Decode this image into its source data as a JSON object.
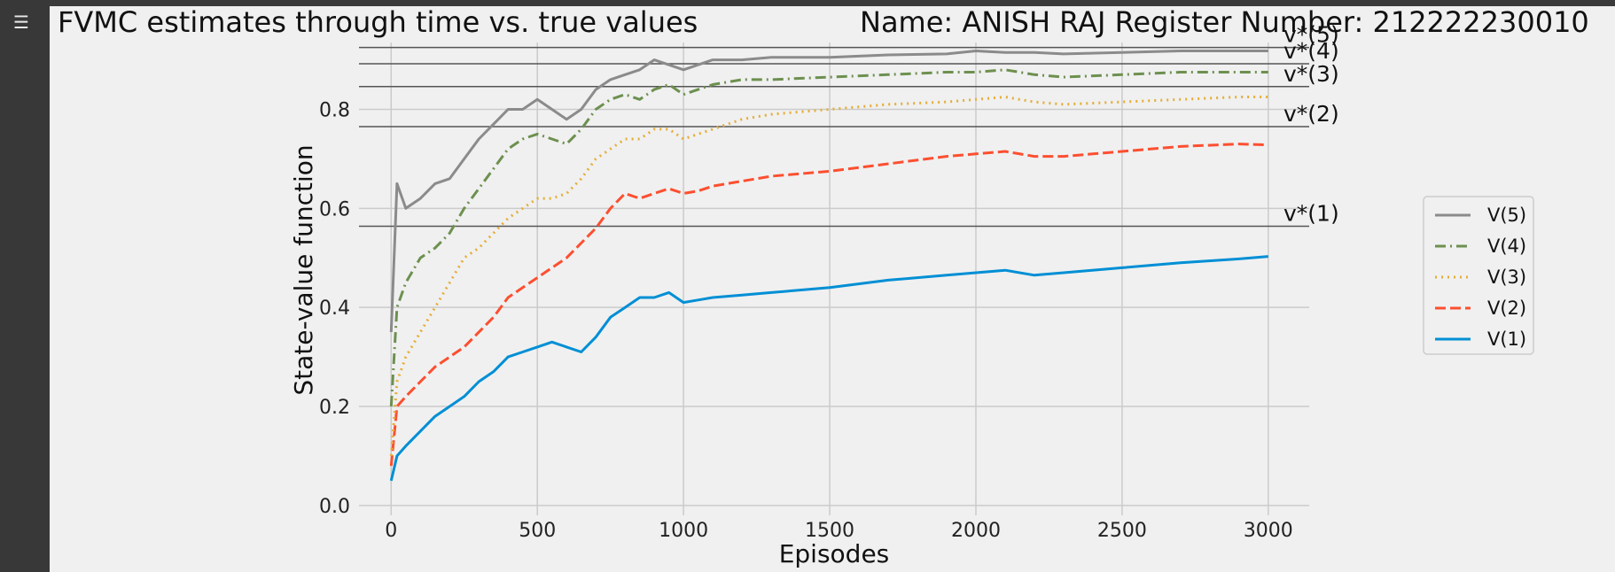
{
  "sidebar": {
    "icon": "output-toggle-icon"
  },
  "header": {
    "title": "FVMC estimates through time vs. true values",
    "student": "Name:  ANISH RAJ  Register Number: 212222230010"
  },
  "chart_data": {
    "type": "line",
    "title": "FVMC estimates through time vs. true values",
    "xlabel": "Episodes",
    "ylabel": "State-value function",
    "xlim": [
      -110,
      3140
    ],
    "ylim": [
      -0.02,
      0.935
    ],
    "xticks": [
      0,
      500,
      1000,
      1500,
      2000,
      2500,
      3000
    ],
    "yticks": [
      0.0,
      0.2,
      0.4,
      0.6,
      0.8
    ],
    "grid": true,
    "legend_position": "right",
    "reference_lines": [
      {
        "label": "v*(5)",
        "value": 0.925
      },
      {
        "label": "v*(4)",
        "value": 0.892
      },
      {
        "label": "v*(3)",
        "value": 0.846
      },
      {
        "label": "v*(2)",
        "value": 0.765
      },
      {
        "label": "v*(1)",
        "value": 0.564
      }
    ],
    "series": [
      {
        "name": "V(5)",
        "color": "#8b8b8b",
        "dash": "solid",
        "x": [
          0,
          20,
          50,
          100,
          150,
          200,
          250,
          300,
          350,
          400,
          450,
          500,
          550,
          600,
          650,
          700,
          750,
          800,
          850,
          900,
          950,
          1000,
          1050,
          1100,
          1200,
          1300,
          1500,
          1700,
          1900,
          2000,
          2100,
          2200,
          2300,
          2500,
          2700,
          2900,
          3000
        ],
        "y": [
          0.35,
          0.65,
          0.6,
          0.62,
          0.65,
          0.66,
          0.7,
          0.74,
          0.77,
          0.8,
          0.8,
          0.82,
          0.8,
          0.78,
          0.8,
          0.84,
          0.86,
          0.87,
          0.88,
          0.9,
          0.89,
          0.88,
          0.89,
          0.9,
          0.9,
          0.905,
          0.905,
          0.91,
          0.912,
          0.918,
          0.915,
          0.915,
          0.912,
          0.915,
          0.918,
          0.918,
          0.918
        ]
      },
      {
        "name": "V(4)",
        "color": "#6d904f",
        "dash": "dashdot",
        "x": [
          0,
          20,
          50,
          100,
          150,
          200,
          250,
          300,
          350,
          400,
          450,
          500,
          550,
          600,
          650,
          700,
          750,
          800,
          850,
          900,
          950,
          1000,
          1050,
          1100,
          1200,
          1300,
          1500,
          1700,
          1900,
          2000,
          2100,
          2200,
          2300,
          2500,
          2700,
          2900,
          3000
        ],
        "y": [
          0.2,
          0.4,
          0.45,
          0.5,
          0.52,
          0.55,
          0.6,
          0.64,
          0.68,
          0.72,
          0.74,
          0.75,
          0.74,
          0.73,
          0.76,
          0.8,
          0.82,
          0.83,
          0.82,
          0.84,
          0.85,
          0.83,
          0.84,
          0.85,
          0.86,
          0.86,
          0.865,
          0.87,
          0.875,
          0.875,
          0.88,
          0.87,
          0.865,
          0.87,
          0.875,
          0.875,
          0.875
        ]
      },
      {
        "name": "V(3)",
        "color": "#e5ae38",
        "dash": "dotted",
        "x": [
          0,
          20,
          50,
          100,
          150,
          200,
          250,
          300,
          350,
          400,
          450,
          500,
          550,
          600,
          650,
          700,
          750,
          800,
          850,
          900,
          950,
          1000,
          1050,
          1100,
          1200,
          1300,
          1500,
          1700,
          1900,
          2000,
          2100,
          2200,
          2300,
          2500,
          2700,
          2900,
          3000
        ],
        "y": [
          0.1,
          0.25,
          0.3,
          0.35,
          0.4,
          0.45,
          0.5,
          0.52,
          0.55,
          0.58,
          0.6,
          0.62,
          0.62,
          0.63,
          0.66,
          0.7,
          0.72,
          0.74,
          0.74,
          0.76,
          0.76,
          0.74,
          0.75,
          0.76,
          0.78,
          0.79,
          0.8,
          0.81,
          0.815,
          0.82,
          0.825,
          0.815,
          0.81,
          0.815,
          0.82,
          0.825,
          0.825
        ]
      },
      {
        "name": "V(2)",
        "color": "#fc4f30",
        "dash": "dashed",
        "x": [
          0,
          20,
          50,
          100,
          150,
          200,
          250,
          300,
          350,
          400,
          450,
          500,
          550,
          600,
          650,
          700,
          750,
          800,
          850,
          900,
          950,
          1000,
          1050,
          1100,
          1200,
          1300,
          1500,
          1700,
          1900,
          2000,
          2100,
          2200,
          2300,
          2500,
          2700,
          2900,
          3000
        ],
        "y": [
          0.08,
          0.2,
          0.22,
          0.25,
          0.28,
          0.3,
          0.32,
          0.35,
          0.38,
          0.42,
          0.44,
          0.46,
          0.48,
          0.5,
          0.53,
          0.56,
          0.6,
          0.63,
          0.62,
          0.63,
          0.64,
          0.63,
          0.635,
          0.645,
          0.655,
          0.665,
          0.675,
          0.69,
          0.705,
          0.71,
          0.715,
          0.705,
          0.705,
          0.715,
          0.725,
          0.73,
          0.728
        ]
      },
      {
        "name": "V(1)",
        "color": "#008fd5",
        "dash": "solid",
        "x": [
          0,
          20,
          50,
          100,
          150,
          200,
          250,
          300,
          350,
          400,
          450,
          500,
          550,
          600,
          650,
          700,
          750,
          800,
          850,
          900,
          950,
          1000,
          1050,
          1100,
          1200,
          1300,
          1500,
          1700,
          1900,
          2000,
          2100,
          2200,
          2300,
          2500,
          2700,
          2900,
          3000
        ],
        "y": [
          0.05,
          0.1,
          0.12,
          0.15,
          0.18,
          0.2,
          0.22,
          0.25,
          0.27,
          0.3,
          0.31,
          0.32,
          0.33,
          0.32,
          0.31,
          0.34,
          0.38,
          0.4,
          0.42,
          0.42,
          0.43,
          0.41,
          0.415,
          0.42,
          0.425,
          0.43,
          0.44,
          0.455,
          0.465,
          0.47,
          0.475,
          0.465,
          0.47,
          0.48,
          0.49,
          0.498,
          0.503
        ]
      }
    ]
  }
}
